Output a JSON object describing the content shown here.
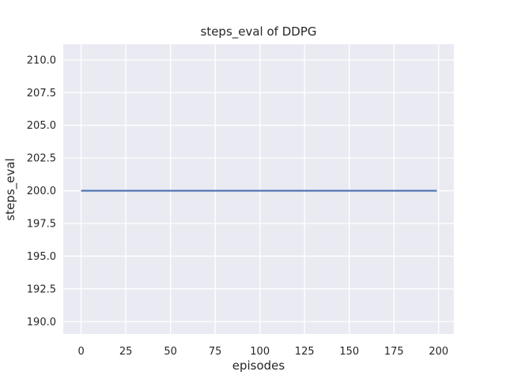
{
  "figure": {
    "kind": "matplotlib-seaborn-figure",
    "background": "#ffffff"
  },
  "chart_data": {
    "type": "line",
    "title": "steps_eval of DDPG",
    "xlabel": "episodes",
    "ylabel": "steps_eval",
    "series": [
      {
        "name": "DDPG",
        "color": "#4c72b0",
        "points": [
          [
            0,
            200.0
          ],
          [
            199,
            200.0
          ]
        ],
        "description": "constant flat line at steps_eval = 200 for episodes 0 through 199"
      }
    ],
    "xticks": [
      0,
      25,
      50,
      75,
      100,
      125,
      150,
      175,
      200
    ],
    "xtick_labels": [
      "0",
      "25",
      "50",
      "75",
      "100",
      "125",
      "150",
      "175",
      "200"
    ],
    "yticks": [
      190.0,
      192.5,
      195.0,
      197.5,
      200.0,
      202.5,
      205.0,
      207.5,
      210.0
    ],
    "ytick_labels": [
      "190.0",
      "192.5",
      "195.0",
      "197.5",
      "200.0",
      "202.5",
      "205.0",
      "207.5",
      "210.0"
    ],
    "xlim": [
      -10.0,
      208.5
    ],
    "ylim": [
      189.05,
      211.2
    ],
    "grid": true,
    "legend": false,
    "plot_bg_color": "#eaeaf2",
    "grid_color": "#ffffff",
    "text_color": "#262626"
  }
}
